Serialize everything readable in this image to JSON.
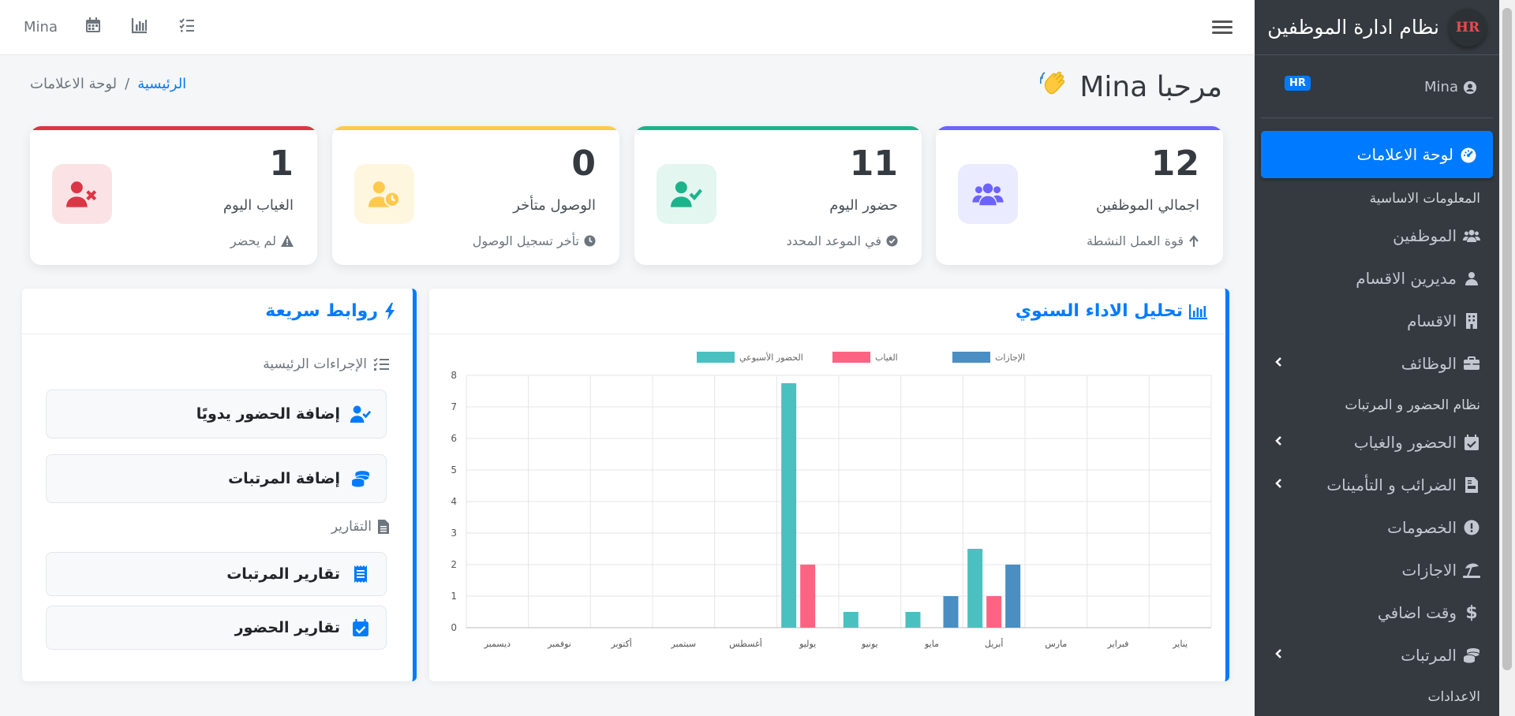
{
  "topbar": {
    "user": "Mina"
  },
  "sidebar": {
    "title": "نظام ادارة الموظفين",
    "logo_text": "HR",
    "user_name": "Mina",
    "badge": "HR",
    "active_item": "لوحة الاعلامات",
    "section1": "المعلومات الاساسية",
    "items1": [
      {
        "label": "الموظفين",
        "icon": "users-icon"
      },
      {
        "label": "مديرين الاقسام",
        "icon": "user-icon"
      },
      {
        "label": "الاقسام",
        "icon": "building-icon"
      },
      {
        "label": "الوظائف",
        "icon": "briefcase-icon"
      }
    ],
    "section2": "نظام الحضور و المرتبات",
    "items2": [
      {
        "label": "الحضور والغياب",
        "icon": "calendar-check-icon"
      },
      {
        "label": "الضرائب و التأمينات",
        "icon": "file-invoice-icon"
      },
      {
        "label": "الخصومات",
        "icon": "exclamation-circle-icon"
      },
      {
        "label": "الاجازات",
        "icon": "umbrella-beach-icon"
      },
      {
        "label": "وقت اضافي",
        "icon": "dollar-icon"
      },
      {
        "label": "المرتبات",
        "icon": "coins-icon"
      }
    ],
    "section3": "الاعدادات"
  },
  "header": {
    "welcome": "مرحبا Mina",
    "breadcrumb_home": "الرئيسية",
    "breadcrumb_sep": "/",
    "breadcrumb_current": "لوحة الاعلامات"
  },
  "cards": [
    {
      "number": "12",
      "label": "اجمالي الموظفين",
      "sub": "قوة العمل النشطة",
      "color": "#6c63ff"
    },
    {
      "number": "11",
      "label": "حضور اليوم",
      "sub": "في الموعد المحدد",
      "color": "#1db38a"
    },
    {
      "number": "0",
      "label": "الوصول متأخر",
      "sub": "تأخر تسجيل الوصول",
      "color": "#ffc94d"
    },
    {
      "number": "1",
      "label": "الغياب اليوم",
      "sub": "لم يحضر",
      "color": "#dc3545"
    }
  ],
  "chart_panel": {
    "title": "تحليل الاداء السنوي"
  },
  "chart_data": {
    "type": "bar",
    "categories": [
      "يناير",
      "فبراير",
      "مارس",
      "أبريل",
      "مايو",
      "يونيو",
      "يوليو",
      "أغسطس",
      "سبتمبر",
      "أكتوبر",
      "نوفمبر",
      "ديسمبر"
    ],
    "series": [
      {
        "name": "الحضور الأسبوعي",
        "color": "#4bc0c0",
        "values": [
          0,
          0,
          0,
          2.5,
          0.5,
          0.5,
          7.75,
          0,
          0,
          0,
          0,
          0
        ]
      },
      {
        "name": "الغياب",
        "color": "#ff6384",
        "values": [
          0,
          0,
          0,
          1,
          0,
          0,
          2,
          0,
          0,
          0,
          0,
          0
        ]
      },
      {
        "name": "الإجازات",
        "color": "#4a8ec2",
        "values": [
          0,
          0,
          0,
          2,
          1,
          0,
          0,
          0,
          0,
          0,
          0,
          0
        ]
      }
    ],
    "ylim": [
      0,
      8
    ],
    "yticks": [
      "0",
      "1",
      "2",
      "3",
      "4",
      "5",
      "6",
      "7",
      "8"
    ],
    "legend": "top-center",
    "grid": true
  },
  "links_panel": {
    "title": "روابط سريعة",
    "section_main": "الإجراءات الرئيسية",
    "btn_attendance": "إضافة الحضور يدويًا",
    "btn_salaries": "إضافة المرتبات",
    "section_reports": "التقارير",
    "btn_salary_reports": "تقارير المرتبات",
    "btn_attendance_reports": "تقارير الحضور"
  }
}
